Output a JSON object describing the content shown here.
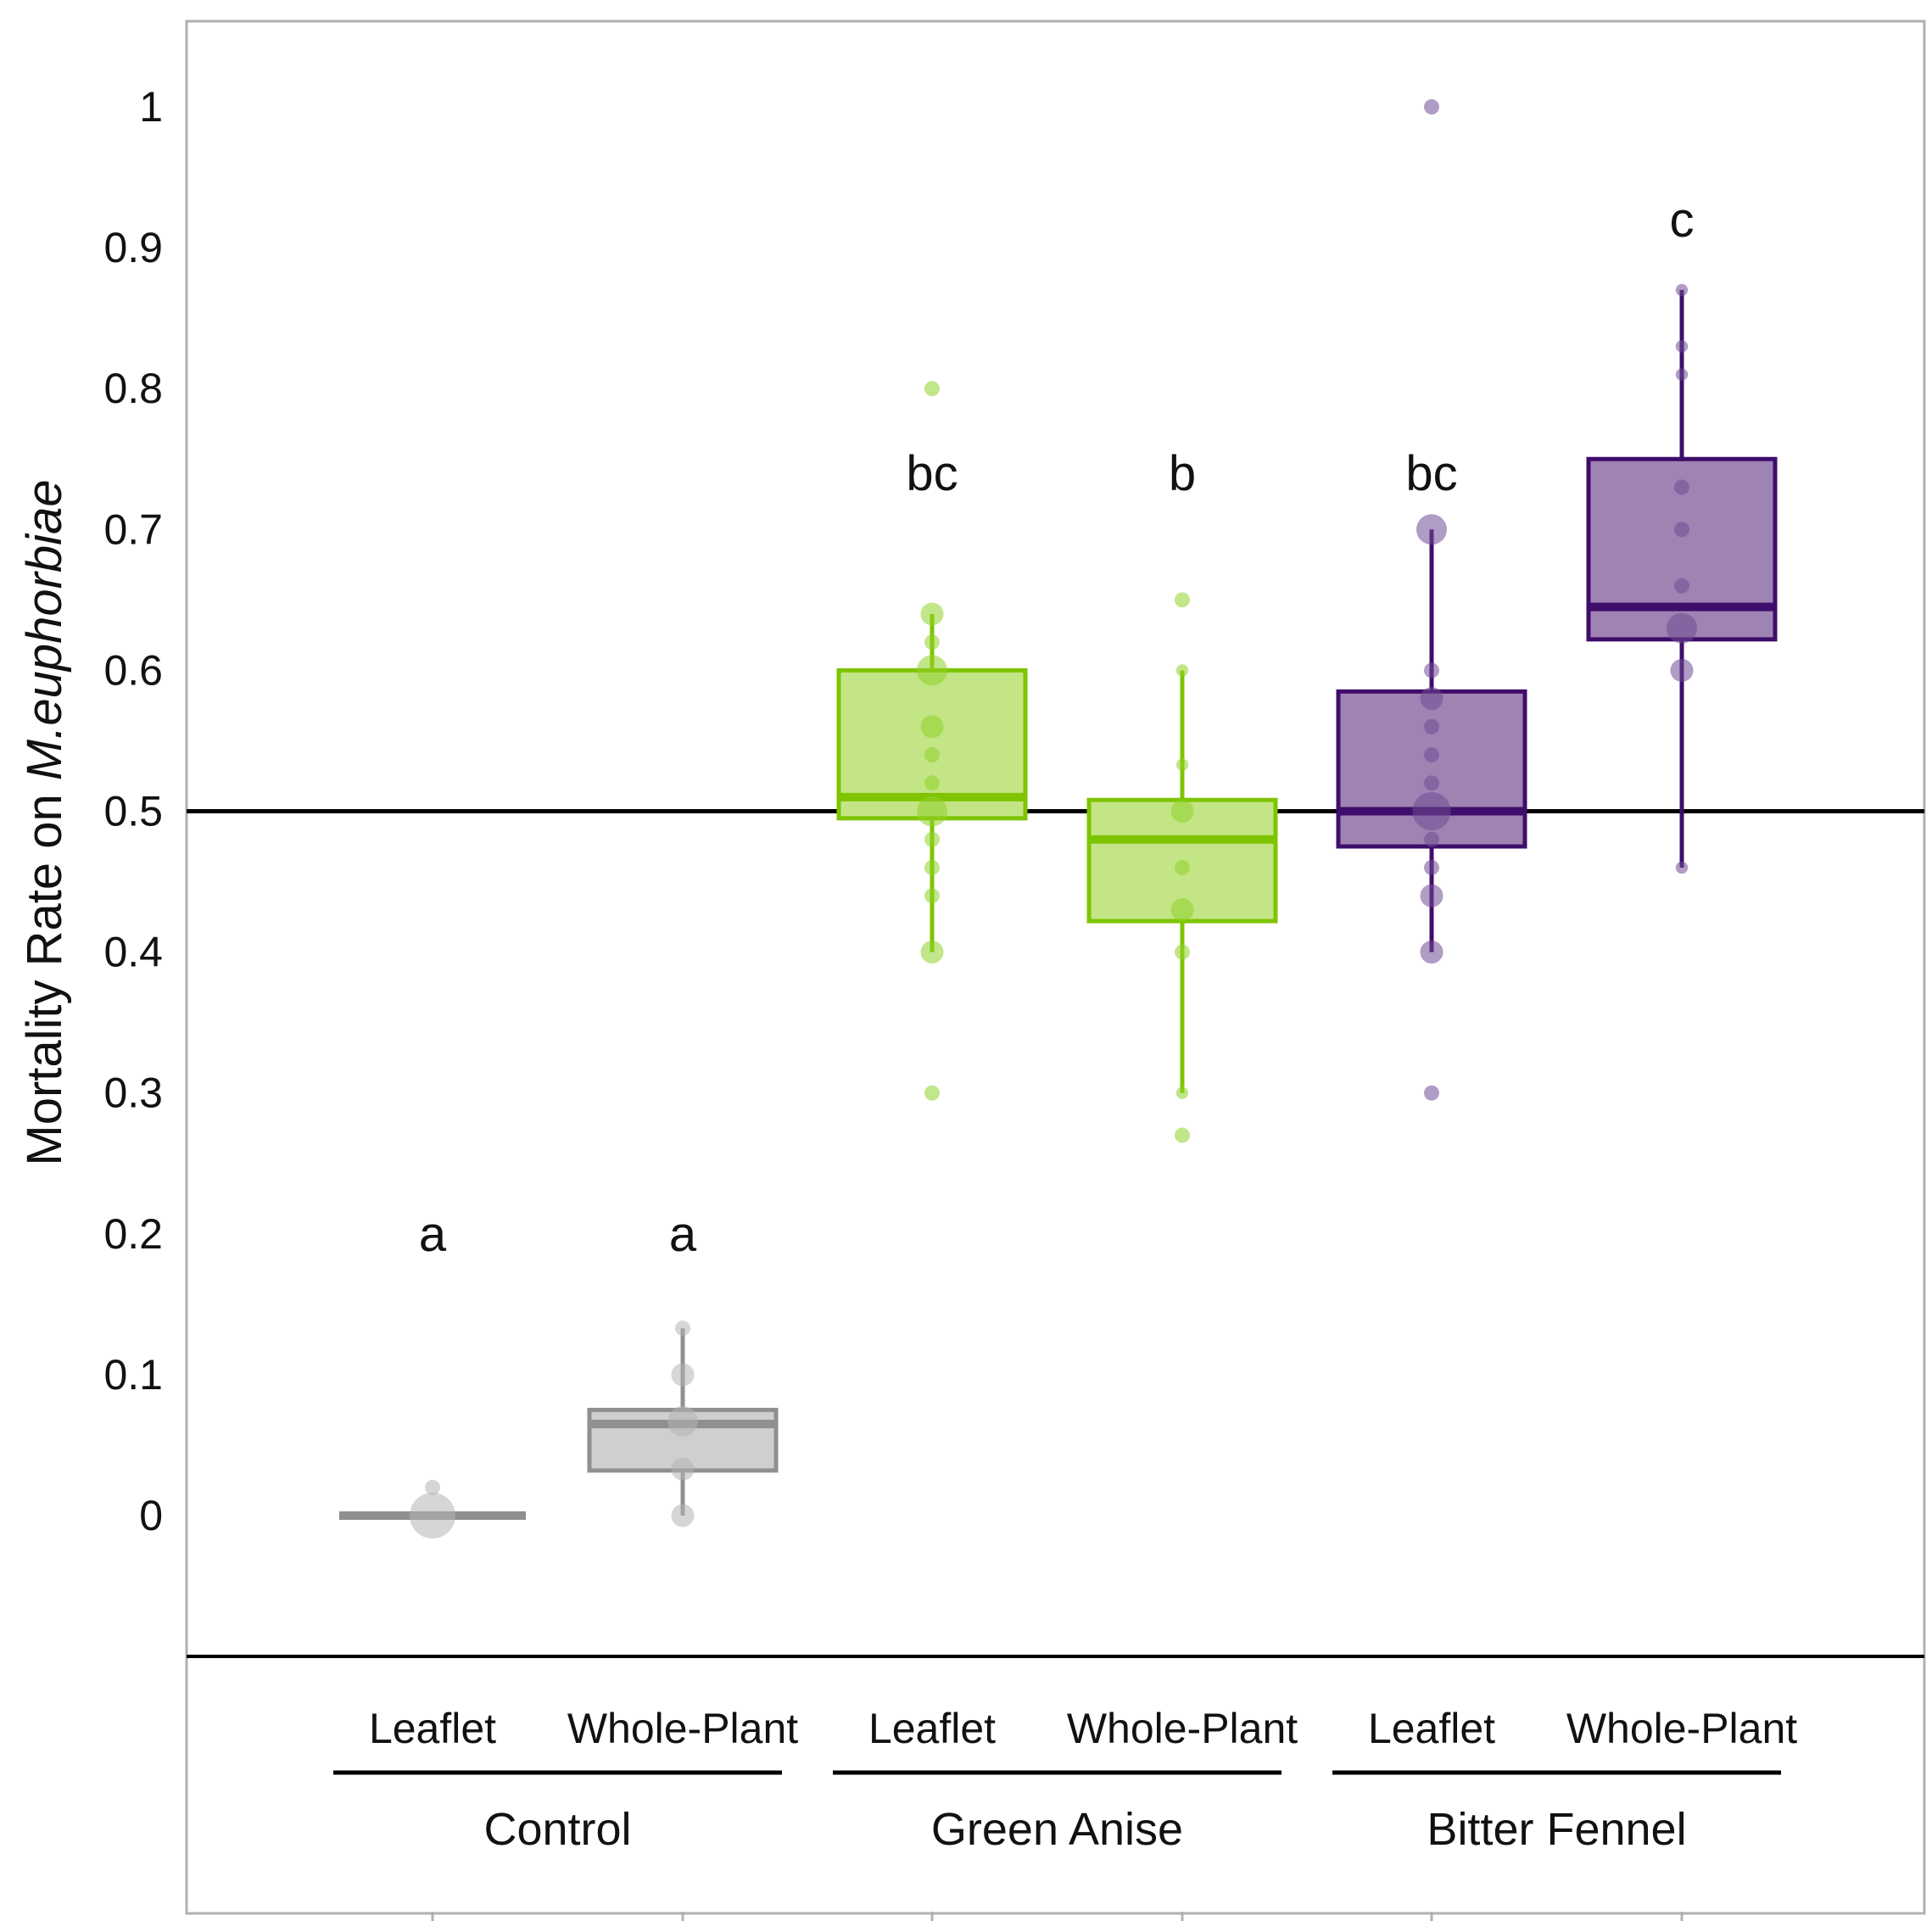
{
  "chart_data": {
    "type": "box",
    "title": "",
    "xlabel": "",
    "ylabel_prefix": "Mortality Rate on ",
    "ylabel_species": "M.euphorbiae",
    "ylim": [
      -0.1,
      1.06
    ],
    "yticks": [
      0,
      0.1,
      0.2,
      0.3,
      0.4,
      0.5,
      0.6,
      0.7,
      0.8,
      0.9,
      1
    ],
    "ytick_labels": [
      "0",
      "0.1",
      "0.2",
      "0.3",
      "0.4",
      "0.5",
      "0.6",
      "0.7",
      "0.8",
      "0.9",
      "1"
    ],
    "reference_line": 0.5,
    "colors": {
      "Control": {
        "stroke": "#8f8f8f",
        "fill": "#cfcfcf",
        "point": "#b5b5b5"
      },
      "Green Anise": {
        "stroke": "#7ec400",
        "fill": "#c3e585",
        "point": "#8fd12a"
      },
      "Bitter Fennel": {
        "stroke": "#3f0d6b",
        "fill": "#9f83b3",
        "point": "#6f4a93"
      }
    },
    "groups": [
      {
        "name": "Control",
        "subgroups": [
          {
            "label": "Leaflet",
            "letter": "a",
            "q1": 0,
            "median": 0,
            "q3": 0,
            "whisker_low": 0,
            "whisker_high": 0,
            "points": [
              {
                "y": 0,
                "size": 3
              },
              {
                "y": 0.02,
                "size": 1
              }
            ]
          },
          {
            "label": "Whole-Plant",
            "letter": "a",
            "q1": 0.032,
            "median": 0.065,
            "q3": 0.075,
            "whisker_low": 0,
            "whisker_high": 0.133,
            "points": [
              {
                "y": 0.133,
                "size": 1
              },
              {
                "y": 0.1,
                "size": 1.5
              },
              {
                "y": 0.067,
                "size": 2
              },
              {
                "y": 0.033,
                "size": 1.5
              },
              {
                "y": 0,
                "size": 1.5
              }
            ]
          }
        ]
      },
      {
        "name": "Green Anise",
        "subgroups": [
          {
            "label": "Leaflet",
            "letter": "bc",
            "q1": 0.495,
            "median": 0.51,
            "q3": 0.6,
            "whisker_low": 0.4,
            "whisker_high": 0.64,
            "points": [
              {
                "y": 0.8,
                "size": 1
              },
              {
                "y": 0.64,
                "size": 1.5
              },
              {
                "y": 0.62,
                "size": 1
              },
              {
                "y": 0.6,
                "size": 2
              },
              {
                "y": 0.56,
                "size": 1.5
              },
              {
                "y": 0.54,
                "size": 1
              },
              {
                "y": 0.52,
                "size": 1
              },
              {
                "y": 0.5,
                "size": 2
              },
              {
                "y": 0.48,
                "size": 1
              },
              {
                "y": 0.46,
                "size": 1
              },
              {
                "y": 0.44,
                "size": 1
              },
              {
                "y": 0.4,
                "size": 1.5
              },
              {
                "y": 0.3,
                "size": 1
              }
            ]
          },
          {
            "label": "Whole-Plant",
            "letter": "b",
            "q1": 0.422,
            "median": 0.48,
            "q3": 0.508,
            "whisker_low": 0.3,
            "whisker_high": 0.6,
            "points": [
              {
                "y": 0.65,
                "size": 1
              },
              {
                "y": 0.6,
                "size": 0.8
              },
              {
                "y": 0.533,
                "size": 0.8
              },
              {
                "y": 0.5,
                "size": 1.5
              },
              {
                "y": 0.46,
                "size": 1
              },
              {
                "y": 0.43,
                "size": 1.5
              },
              {
                "y": 0.4,
                "size": 1
              },
              {
                "y": 0.3,
                "size": 0.8
              },
              {
                "y": 0.27,
                "size": 1
              }
            ]
          }
        ]
      },
      {
        "name": "Bitter Fennel",
        "subgroups": [
          {
            "label": "Leaflet",
            "letter": "bc",
            "q1": 0.475,
            "median": 0.5,
            "q3": 0.585,
            "whisker_low": 0.4,
            "whisker_high": 0.7,
            "points": [
              {
                "y": 1,
                "size": 1
              },
              {
                "y": 0.7,
                "size": 2
              },
              {
                "y": 0.6,
                "size": 1
              },
              {
                "y": 0.58,
                "size": 1.5
              },
              {
                "y": 0.56,
                "size": 1
              },
              {
                "y": 0.54,
                "size": 1
              },
              {
                "y": 0.52,
                "size": 1
              },
              {
                "y": 0.5,
                "size": 2.5
              },
              {
                "y": 0.48,
                "size": 1
              },
              {
                "y": 0.46,
                "size": 1
              },
              {
                "y": 0.44,
                "size": 1.5
              },
              {
                "y": 0.4,
                "size": 1.5
              },
              {
                "y": 0.3,
                "size": 1
              }
            ]
          },
          {
            "label": "Whole-Plant",
            "letter": "c",
            "q1": 0.622,
            "median": 0.645,
            "q3": 0.75,
            "whisker_low": 0.46,
            "whisker_high": 0.87,
            "points": [
              {
                "y": 0.87,
                "size": 0.8
              },
              {
                "y": 0.83,
                "size": 0.8
              },
              {
                "y": 0.81,
                "size": 0.8
              },
              {
                "y": 0.73,
                "size": 1
              },
              {
                "y": 0.7,
                "size": 1
              },
              {
                "y": 0.66,
                "size": 1
              },
              {
                "y": 0.63,
                "size": 2
              },
              {
                "y": 0.6,
                "size": 1.5
              },
              {
                "y": 0.46,
                "size": 0.8
              }
            ]
          }
        ]
      }
    ]
  }
}
